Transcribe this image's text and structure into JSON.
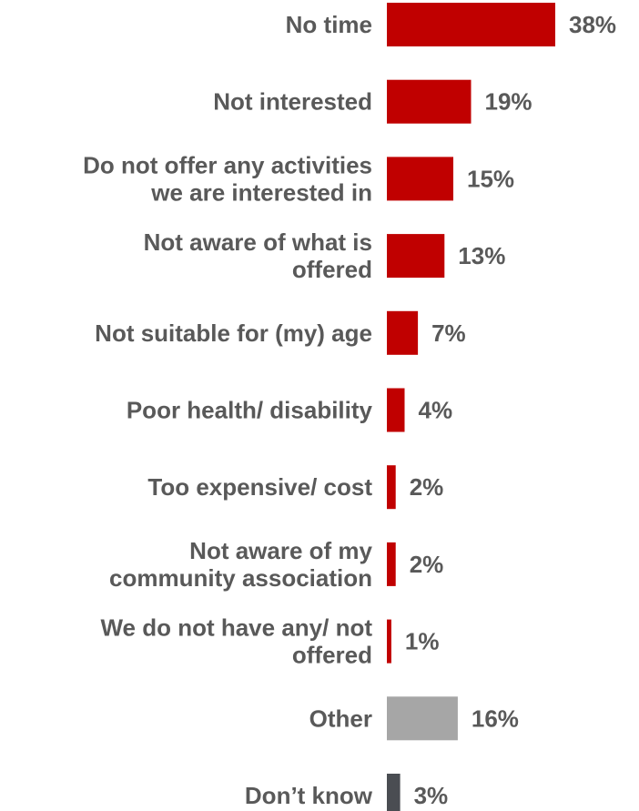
{
  "chart_data": {
    "type": "bar",
    "orientation": "horizontal",
    "categories": [
      [
        "No time"
      ],
      [
        "Not interested"
      ],
      [
        "Do not offer any activities",
        "we are interested in"
      ],
      [
        "Not aware of what is",
        "offered"
      ],
      [
        "Not suitable for (my) age"
      ],
      [
        "Poor health/ disability"
      ],
      [
        "Too expensive/ cost"
      ],
      [
        "Not aware of my",
        "community association"
      ],
      [
        "We do not have any/ not",
        "offered"
      ],
      [
        "Other"
      ],
      [
        "Don’t know"
      ]
    ],
    "values": [
      38,
      19,
      15,
      13,
      7,
      4,
      2,
      2,
      1,
      16,
      3
    ],
    "value_labels": [
      "38%",
      "19%",
      "15%",
      "13%",
      "7%",
      "4%",
      "2%",
      "2%",
      "1%",
      "16%",
      "3%"
    ],
    "colors": [
      "#c00000",
      "#c00000",
      "#c00000",
      "#c00000",
      "#c00000",
      "#c00000",
      "#c00000",
      "#c00000",
      "#c00000",
      "#a6a6a6",
      "#4a4d52"
    ],
    "title": "",
    "xlabel": "",
    "ylabel": "",
    "xlim": [
      0,
      38
    ],
    "grid": false,
    "legend": "none"
  }
}
